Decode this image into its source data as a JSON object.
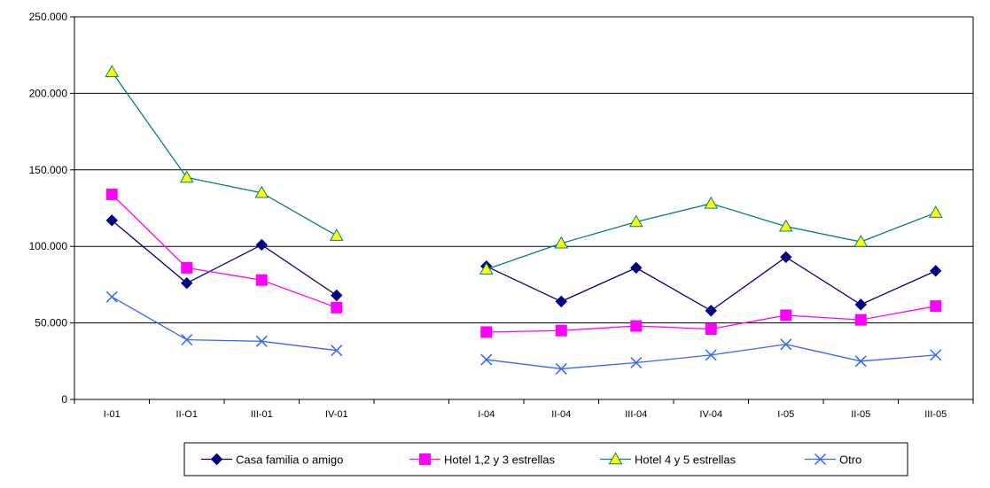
{
  "chart_data": {
    "type": "line",
    "categories": [
      "I-01",
      "II-O1",
      "III-01",
      "IV-01",
      "",
      "I-04",
      "II-04",
      "III-04",
      "IV-04",
      "I-05",
      "II-05",
      "III-05"
    ],
    "ylim": [
      0,
      250000
    ],
    "yticks": [
      0,
      50000,
      100000,
      150000,
      200000,
      250000
    ],
    "ytick_labels": [
      "0",
      "50.000",
      "100.000",
      "150.000",
      "200.000",
      "250.000"
    ],
    "grid": true,
    "legend_position": "bottom",
    "series": [
      {
        "name": "Casa familia o amigo",
        "color": "#000080",
        "marker": "diamond",
        "values": [
          117000,
          76000,
          101000,
          68000,
          null,
          87000,
          64000,
          86000,
          58000,
          93000,
          62000,
          84000
        ]
      },
      {
        "name": "Hotel 1,2 y 3 estrellas",
        "color": "#FF00FF",
        "marker": "square",
        "values": [
          134000,
          86000,
          78000,
          60000,
          null,
          44000,
          45000,
          48000,
          46000,
          55000,
          52000,
          61000
        ]
      },
      {
        "name": "Hotel 4 y 5 estrellas",
        "color": "#008080",
        "marker": "triangle",
        "marker_fill": "#FFFF00",
        "values": [
          214000,
          145000,
          135000,
          107000,
          null,
          85000,
          102000,
          116000,
          128000,
          113000,
          103000,
          122000
        ]
      },
      {
        "name": "Otro",
        "color": "#3366FF",
        "marker": "x",
        "values": [
          67000,
          39000,
          38000,
          32000,
          null,
          26000,
          20000,
          24000,
          29000,
          36000,
          25000,
          29000
        ]
      }
    ]
  }
}
